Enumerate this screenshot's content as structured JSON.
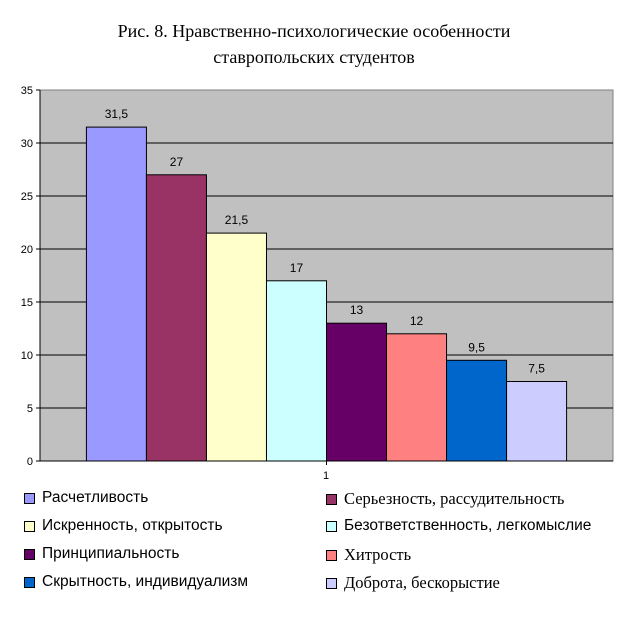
{
  "chart_data": {
    "type": "bar",
    "title_lines": [
      "Рис. 8. Нравственно-психологические особенности",
      "ставропольских студентов"
    ],
    "categories": [
      "1"
    ],
    "ylim": [
      0,
      35
    ],
    "yticks": [
      0,
      5,
      10,
      15,
      20,
      25,
      30,
      35
    ],
    "grid": true,
    "legend_position": "bottom",
    "series": [
      {
        "name": "Расчетливость",
        "value": 31.5,
        "label": "31,5",
        "color": "#9999ff"
      },
      {
        "name": "Серьезность, рассудительность",
        "value": 27,
        "label": "27",
        "color": "#993366"
      },
      {
        "name": "Искренность, открытость",
        "value": 21.5,
        "label": "21,5",
        "color": "#ffffcc"
      },
      {
        "name": "Безответственность, легкомыслие",
        "value": 17,
        "label": "17",
        "color": "#ccffff"
      },
      {
        "name": "Принципиальность",
        "value": 13,
        "label": "13",
        "color": "#660066"
      },
      {
        "name": "Хитрость",
        "value": 12,
        "label": "12",
        "color": "#ff8080"
      },
      {
        "name": "Скрытность, индивидуализм",
        "value": 9.5,
        "label": "9,5",
        "color": "#0066cc"
      },
      {
        "name": "Доброта, бескорыстие",
        "value": 7.5,
        "label": "7,5",
        "color": "#ccccff"
      }
    ]
  }
}
